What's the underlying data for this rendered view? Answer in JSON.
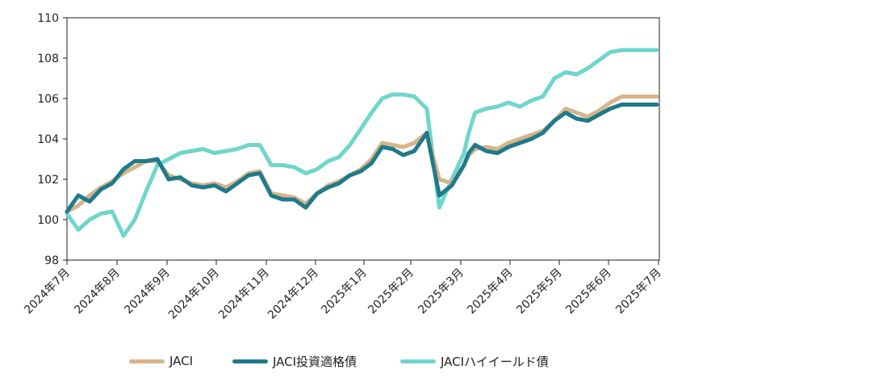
{
  "chart_data": {
    "type": "line",
    "title": "",
    "xlabel": "",
    "ylabel": "",
    "ylim": [
      98,
      110
    ],
    "yticks": [
      98,
      100,
      102,
      104,
      106,
      108,
      110
    ],
    "x_tick_labels": [
      "2024年7月",
      "2024年8月",
      "2024年9月",
      "2024年10月",
      "2024年11月",
      "2024年12月",
      "2025年1月",
      "2025年2月",
      "2025年3月",
      "2025年4月",
      "2025年5月",
      "2025年6月",
      "2025年7月"
    ],
    "grid": false,
    "legend_position": "bottom",
    "x_points": [
      "07-01",
      "07-08",
      "07-15",
      "07-22",
      "07-29",
      "08-05",
      "08-12",
      "08-19",
      "08-26",
      "09-02",
      "09-09",
      "09-16",
      "09-23",
      "09-30",
      "10-07",
      "10-14",
      "10-21",
      "10-28",
      "11-04",
      "11-11",
      "11-18",
      "11-25",
      "12-02",
      "12-09",
      "12-16",
      "12-23",
      "12-30",
      "01-06",
      "01-13",
      "01-20",
      "01-27",
      "02-03",
      "02-10",
      "02-17",
      "02-24",
      "03-03",
      "03-06",
      "03-10",
      "03-17",
      "03-24",
      "03-31",
      "04-07",
      "04-14",
      "04-21",
      "04-28",
      "05-05",
      "05-12",
      "05-19",
      "05-26",
      "06-02",
      "06-09",
      "06-16",
      "06-23",
      "06-30"
    ],
    "series": [
      {
        "name": "JACI",
        "color": "#d7b48a",
        "values": [
          100.4,
          100.7,
          101.2,
          101.6,
          101.9,
          102.3,
          102.6,
          102.9,
          102.9,
          102.2,
          102.0,
          101.8,
          101.7,
          101.8,
          101.6,
          101.9,
          102.3,
          102.4,
          101.3,
          101.2,
          101.1,
          100.8,
          101.3,
          101.7,
          101.9,
          102.2,
          102.5,
          103.0,
          103.8,
          103.7,
          103.6,
          103.8,
          104.3,
          102.0,
          101.8,
          102.7,
          103.2,
          103.5,
          103.6,
          103.5,
          103.8,
          104.0,
          104.2,
          104.4,
          104.9,
          105.5,
          105.3,
          105.1,
          105.4,
          105.8,
          106.1,
          106.1,
          106.1,
          106.1
        ]
      },
      {
        "name": "JACI投資適格債",
        "color": "#1f7a8c",
        "values": [
          100.4,
          101.2,
          100.9,
          101.5,
          101.8,
          102.5,
          102.9,
          102.9,
          103.0,
          102.0,
          102.1,
          101.7,
          101.6,
          101.7,
          101.4,
          101.8,
          102.2,
          102.3,
          101.2,
          101.0,
          101.0,
          100.6,
          101.3,
          101.6,
          101.8,
          102.2,
          102.4,
          102.8,
          103.6,
          103.5,
          103.2,
          103.4,
          104.3,
          101.2,
          101.7,
          102.7,
          103.3,
          103.7,
          103.4,
          103.3,
          103.6,
          103.8,
          104.0,
          104.3,
          104.9,
          105.3,
          105.0,
          104.9,
          105.2,
          105.5,
          105.7,
          105.7,
          105.7,
          105.7
        ]
      },
      {
        "name": "JACIハイイールド債",
        "color": "#6fd6cc",
        "values": [
          100.3,
          99.5,
          100.0,
          100.3,
          100.4,
          99.2,
          100.0,
          101.4,
          102.7,
          103.0,
          103.3,
          103.4,
          103.5,
          103.3,
          103.4,
          103.5,
          103.7,
          103.7,
          102.7,
          102.7,
          102.6,
          102.3,
          102.5,
          102.9,
          103.1,
          103.7,
          104.5,
          105.3,
          106.0,
          106.2,
          106.2,
          106.1,
          105.5,
          100.6,
          102.0,
          103.3,
          104.3,
          105.3,
          105.5,
          105.6,
          105.8,
          105.6,
          105.9,
          106.1,
          107.0,
          107.3,
          107.2,
          107.5,
          107.9,
          108.3,
          108.4,
          108.4,
          108.4,
          108.4
        ]
      }
    ]
  }
}
